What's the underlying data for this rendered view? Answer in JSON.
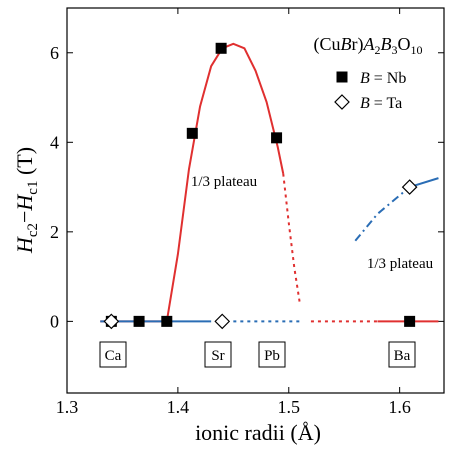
{
  "chart_data": {
    "type": "scatter",
    "title": "(CuBr)A2B3O10",
    "x_label": "ionic radii (Å)",
    "y_label": "Hc2−Hc1 (T)",
    "xlim": [
      1.3,
      1.64
    ],
    "xticks": [
      1.3,
      1.4,
      1.5,
      1.6
    ],
    "ylim": [
      -1.6,
      7
    ],
    "yticks": [
      0,
      2,
      4,
      6
    ],
    "series": [
      {
        "name": "B = Nb",
        "marker": "square",
        "color": "#000000",
        "x": [
          1.34,
          1.365,
          1.39,
          1.413,
          1.439,
          1.489,
          1.609
        ],
        "values": [
          0,
          0,
          0,
          4.2,
          6.1,
          4.1,
          0
        ]
      },
      {
        "name": "B = Ta",
        "marker": "diamond",
        "color": "#000000",
        "x": [
          1.34,
          1.44,
          1.609
        ],
        "values": [
          0,
          0,
          3.0
        ]
      }
    ],
    "curves": [
      {
        "color": "#e03030",
        "dash": "solid",
        "x": [
          1.33,
          1.36,
          1.39,
          1.4,
          1.41,
          1.42,
          1.43,
          1.44,
          1.45,
          1.46,
          1.47,
          1.48,
          1.49,
          1.495
        ],
        "values": [
          0,
          0,
          0,
          1.5,
          3.4,
          4.8,
          5.7,
          6.1,
          6.2,
          6.1,
          5.6,
          4.9,
          3.9,
          3.3
        ]
      },
      {
        "color": "#e03030",
        "dash": "dot",
        "x": [
          1.495,
          1.5,
          1.505,
          1.51
        ],
        "values": [
          3.3,
          2.2,
          1.2,
          0.4
        ]
      },
      {
        "color": "#e03030",
        "dash": "dot",
        "x": [
          1.52,
          1.58
        ],
        "values": [
          0,
          0
        ]
      },
      {
        "color": "#e03030",
        "dash": "solid",
        "x": [
          1.58,
          1.635
        ],
        "values": [
          0,
          0
        ]
      },
      {
        "color": "#2a6db5",
        "dash": "solid",
        "x": [
          1.33,
          1.43
        ],
        "values": [
          0,
          0
        ]
      },
      {
        "color": "#2a6db5",
        "dash": "dot",
        "x": [
          1.45,
          1.51
        ],
        "values": [
          0,
          0
        ]
      },
      {
        "color": "#2a6db5",
        "dash": "dashdot",
        "x": [
          1.56,
          1.58,
          1.609
        ],
        "values": [
          1.8,
          2.4,
          3.0
        ]
      },
      {
        "color": "#2a6db5",
        "dash": "solid",
        "x": [
          1.609,
          1.635
        ],
        "values": [
          3.0,
          3.2
        ]
      }
    ],
    "element_labels": [
      "Ca",
      "Sr",
      "Pb",
      "Ba"
    ],
    "annotations": [
      "1/3 plateau",
      "1/3 plateau"
    ]
  }
}
